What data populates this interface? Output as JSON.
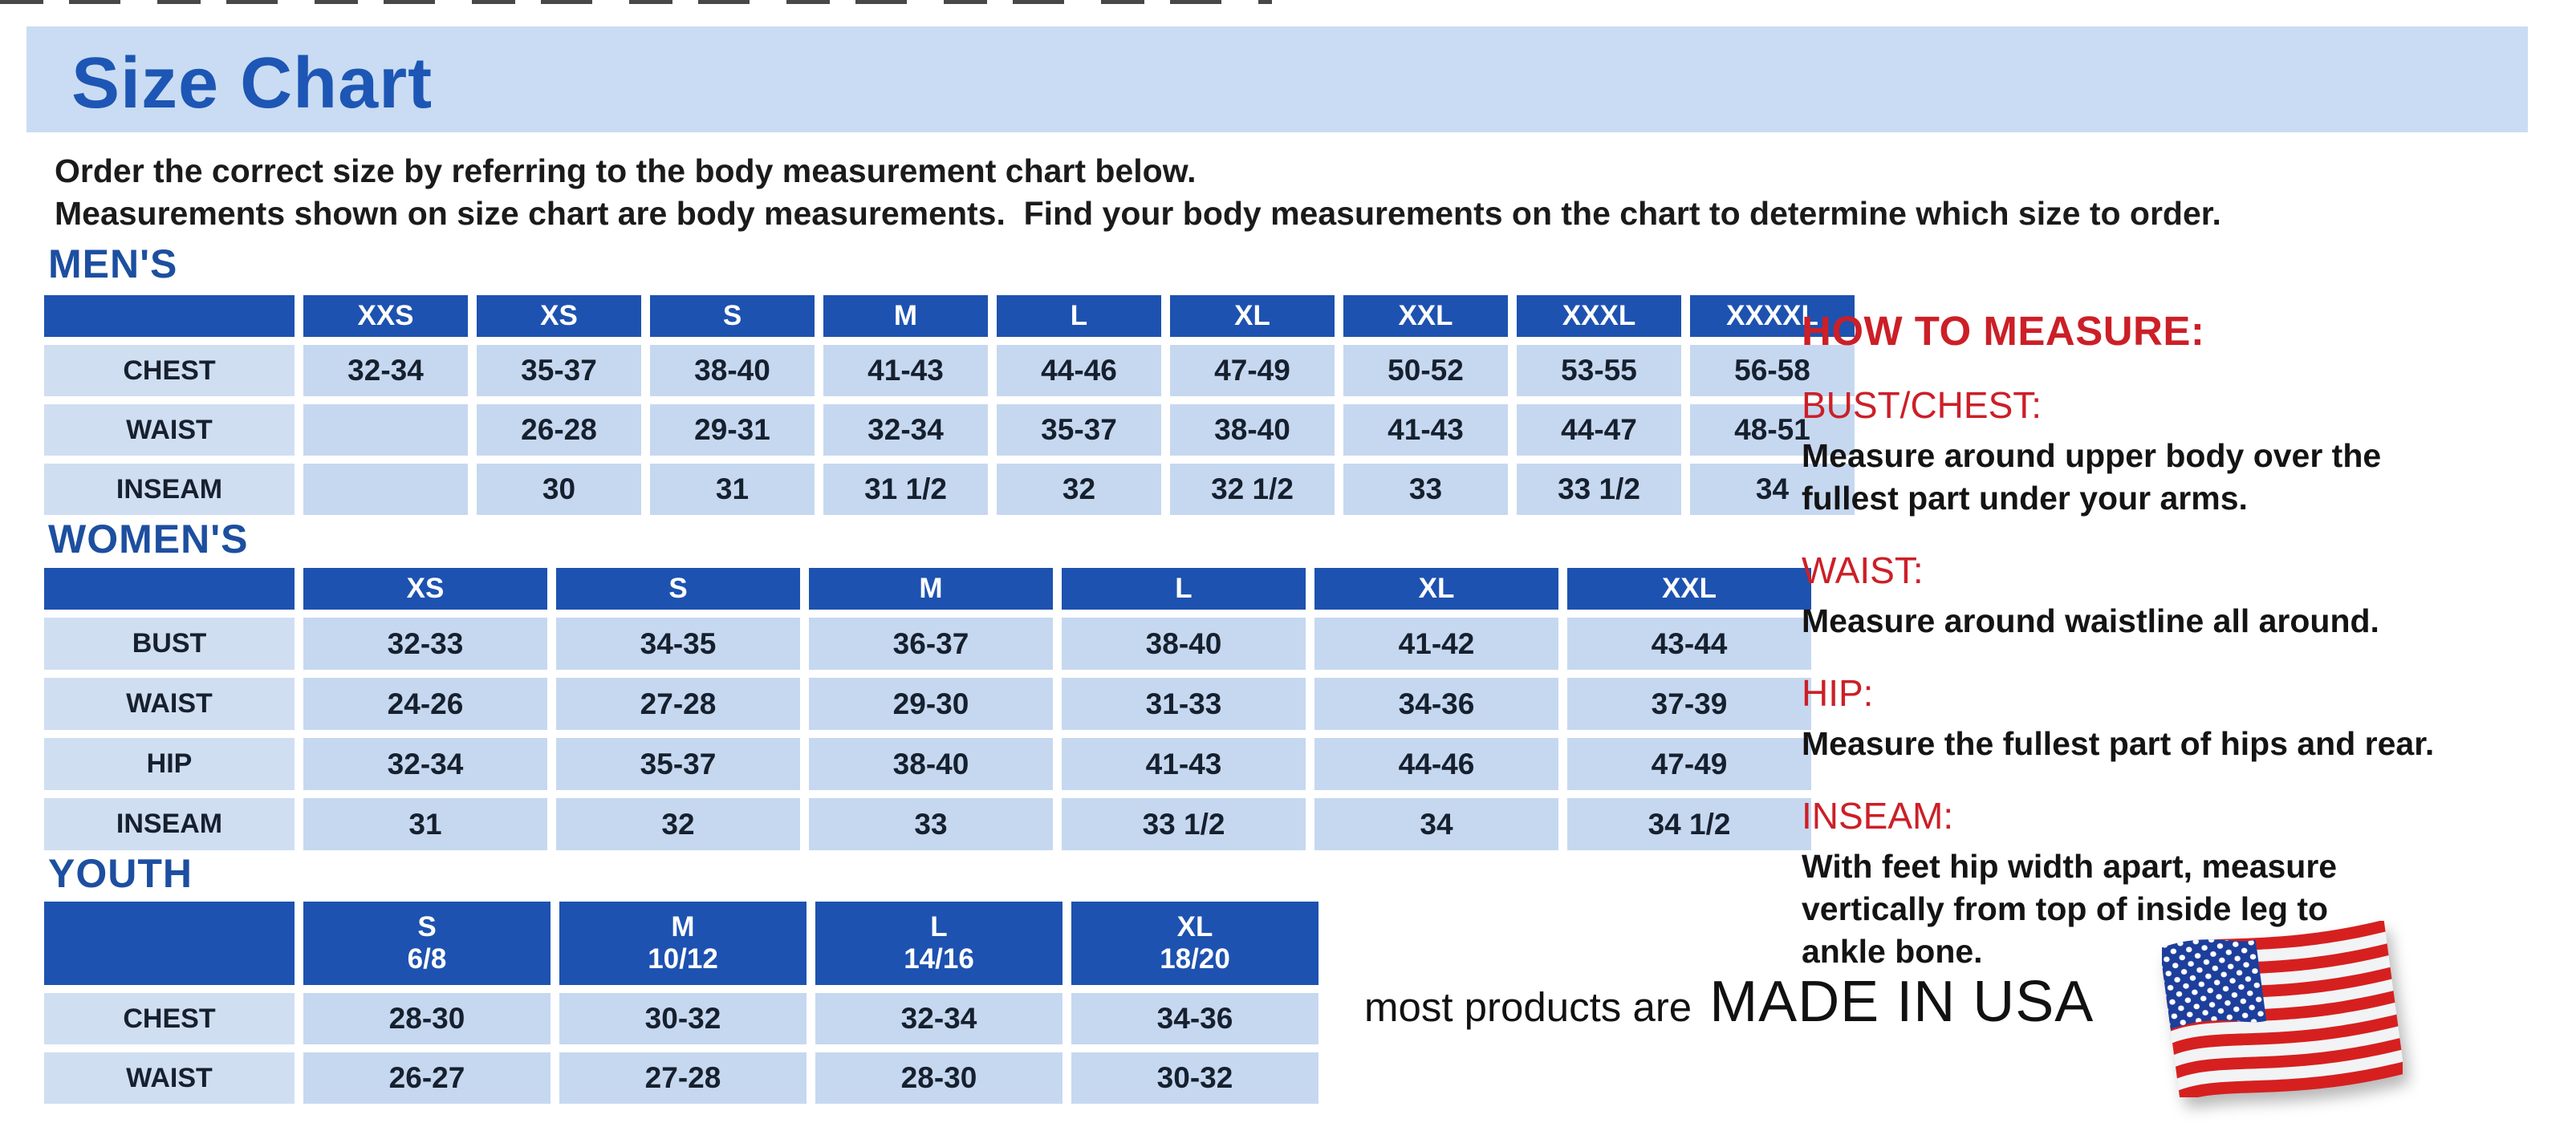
{
  "page": {
    "title": "Size Chart",
    "intro_line1": "Order the correct size by referring to the body measurement chart below.",
    "intro_line2": "Measurements shown on size chart are body measurements.  Find your body measurements on the chart to determine which size to order."
  },
  "tables": {
    "mens": {
      "heading": "MEN'S",
      "columns": [
        "XXS",
        "XS",
        "S",
        "M",
        "L",
        "XL",
        "XXL",
        "XXXL",
        "XXXXL"
      ],
      "rows": [
        {
          "label": "CHEST",
          "values": [
            "32-34",
            "35-37",
            "38-40",
            "41-43",
            "44-46",
            "47-49",
            "50-52",
            "53-55",
            "56-58"
          ]
        },
        {
          "label": "WAIST",
          "values": [
            "",
            "26-28",
            "29-31",
            "32-34",
            "35-37",
            "38-40",
            "41-43",
            "44-47",
            "48-51"
          ]
        },
        {
          "label": "INSEAM",
          "values": [
            "",
            "30",
            "31",
            "31 1/2",
            "32",
            "32 1/2",
            "33",
            "33 1/2",
            "34"
          ]
        }
      ]
    },
    "womens": {
      "heading": "WOMEN'S",
      "columns": [
        "XS",
        "S",
        "M",
        "L",
        "XL",
        "XXL"
      ],
      "rows": [
        {
          "label": "BUST",
          "values": [
            "32-33",
            "34-35",
            "36-37",
            "38-40",
            "41-42",
            "43-44"
          ]
        },
        {
          "label": "WAIST",
          "values": [
            "24-26",
            "27-28",
            "29-30",
            "31-33",
            "34-36",
            "37-39"
          ]
        },
        {
          "label": "HIP",
          "values": [
            "32-34",
            "35-37",
            "38-40",
            "41-43",
            "44-46",
            "47-49"
          ]
        },
        {
          "label": "INSEAM",
          "values": [
            "31",
            "32",
            "33",
            "33 1/2",
            "34",
            "34 1/2"
          ]
        }
      ]
    },
    "youth": {
      "heading": "YOUTH",
      "columns": [
        "S\n6/8",
        "M\n10/12",
        "L\n14/16",
        "XL\n18/20"
      ],
      "rows": [
        {
          "label": "CHEST",
          "values": [
            "28-30",
            "30-32",
            "32-34",
            "34-36"
          ]
        },
        {
          "label": "WAIST",
          "values": [
            "26-27",
            "27-28",
            "28-30",
            "30-32"
          ]
        }
      ]
    }
  },
  "how_to_measure": {
    "heading": "HOW TO MEASURE:",
    "items": [
      {
        "label": "BUST/CHEST:",
        "text": "Measure around upper body over the\nfullest part under your arms."
      },
      {
        "label": "WAIST:",
        "text": "Measure around waistline all around."
      },
      {
        "label": "HIP:",
        "text": "Measure the fullest part of hips and rear."
      },
      {
        "label": "INSEAM:",
        "text": "With feet hip width apart, measure\nvertically from top of inside leg to\nankle bone."
      }
    ]
  },
  "footer": {
    "made_in_prefix": "most products are",
    "made_in_main": "MADE IN USA",
    "flag_icon": "us-flag-icon"
  },
  "colors": {
    "title-blue": "#1d56b4",
    "section-blue": "#1d4fa0",
    "header-blue": "#1d52b0",
    "banner-blue": "#c9dcf3",
    "label-cell": "#d0def2",
    "value-cell": "#c6d8f0",
    "accent-red": "#cc1f27",
    "flag-red": "#d6201f",
    "flag-blue": "#1d3e9b"
  }
}
